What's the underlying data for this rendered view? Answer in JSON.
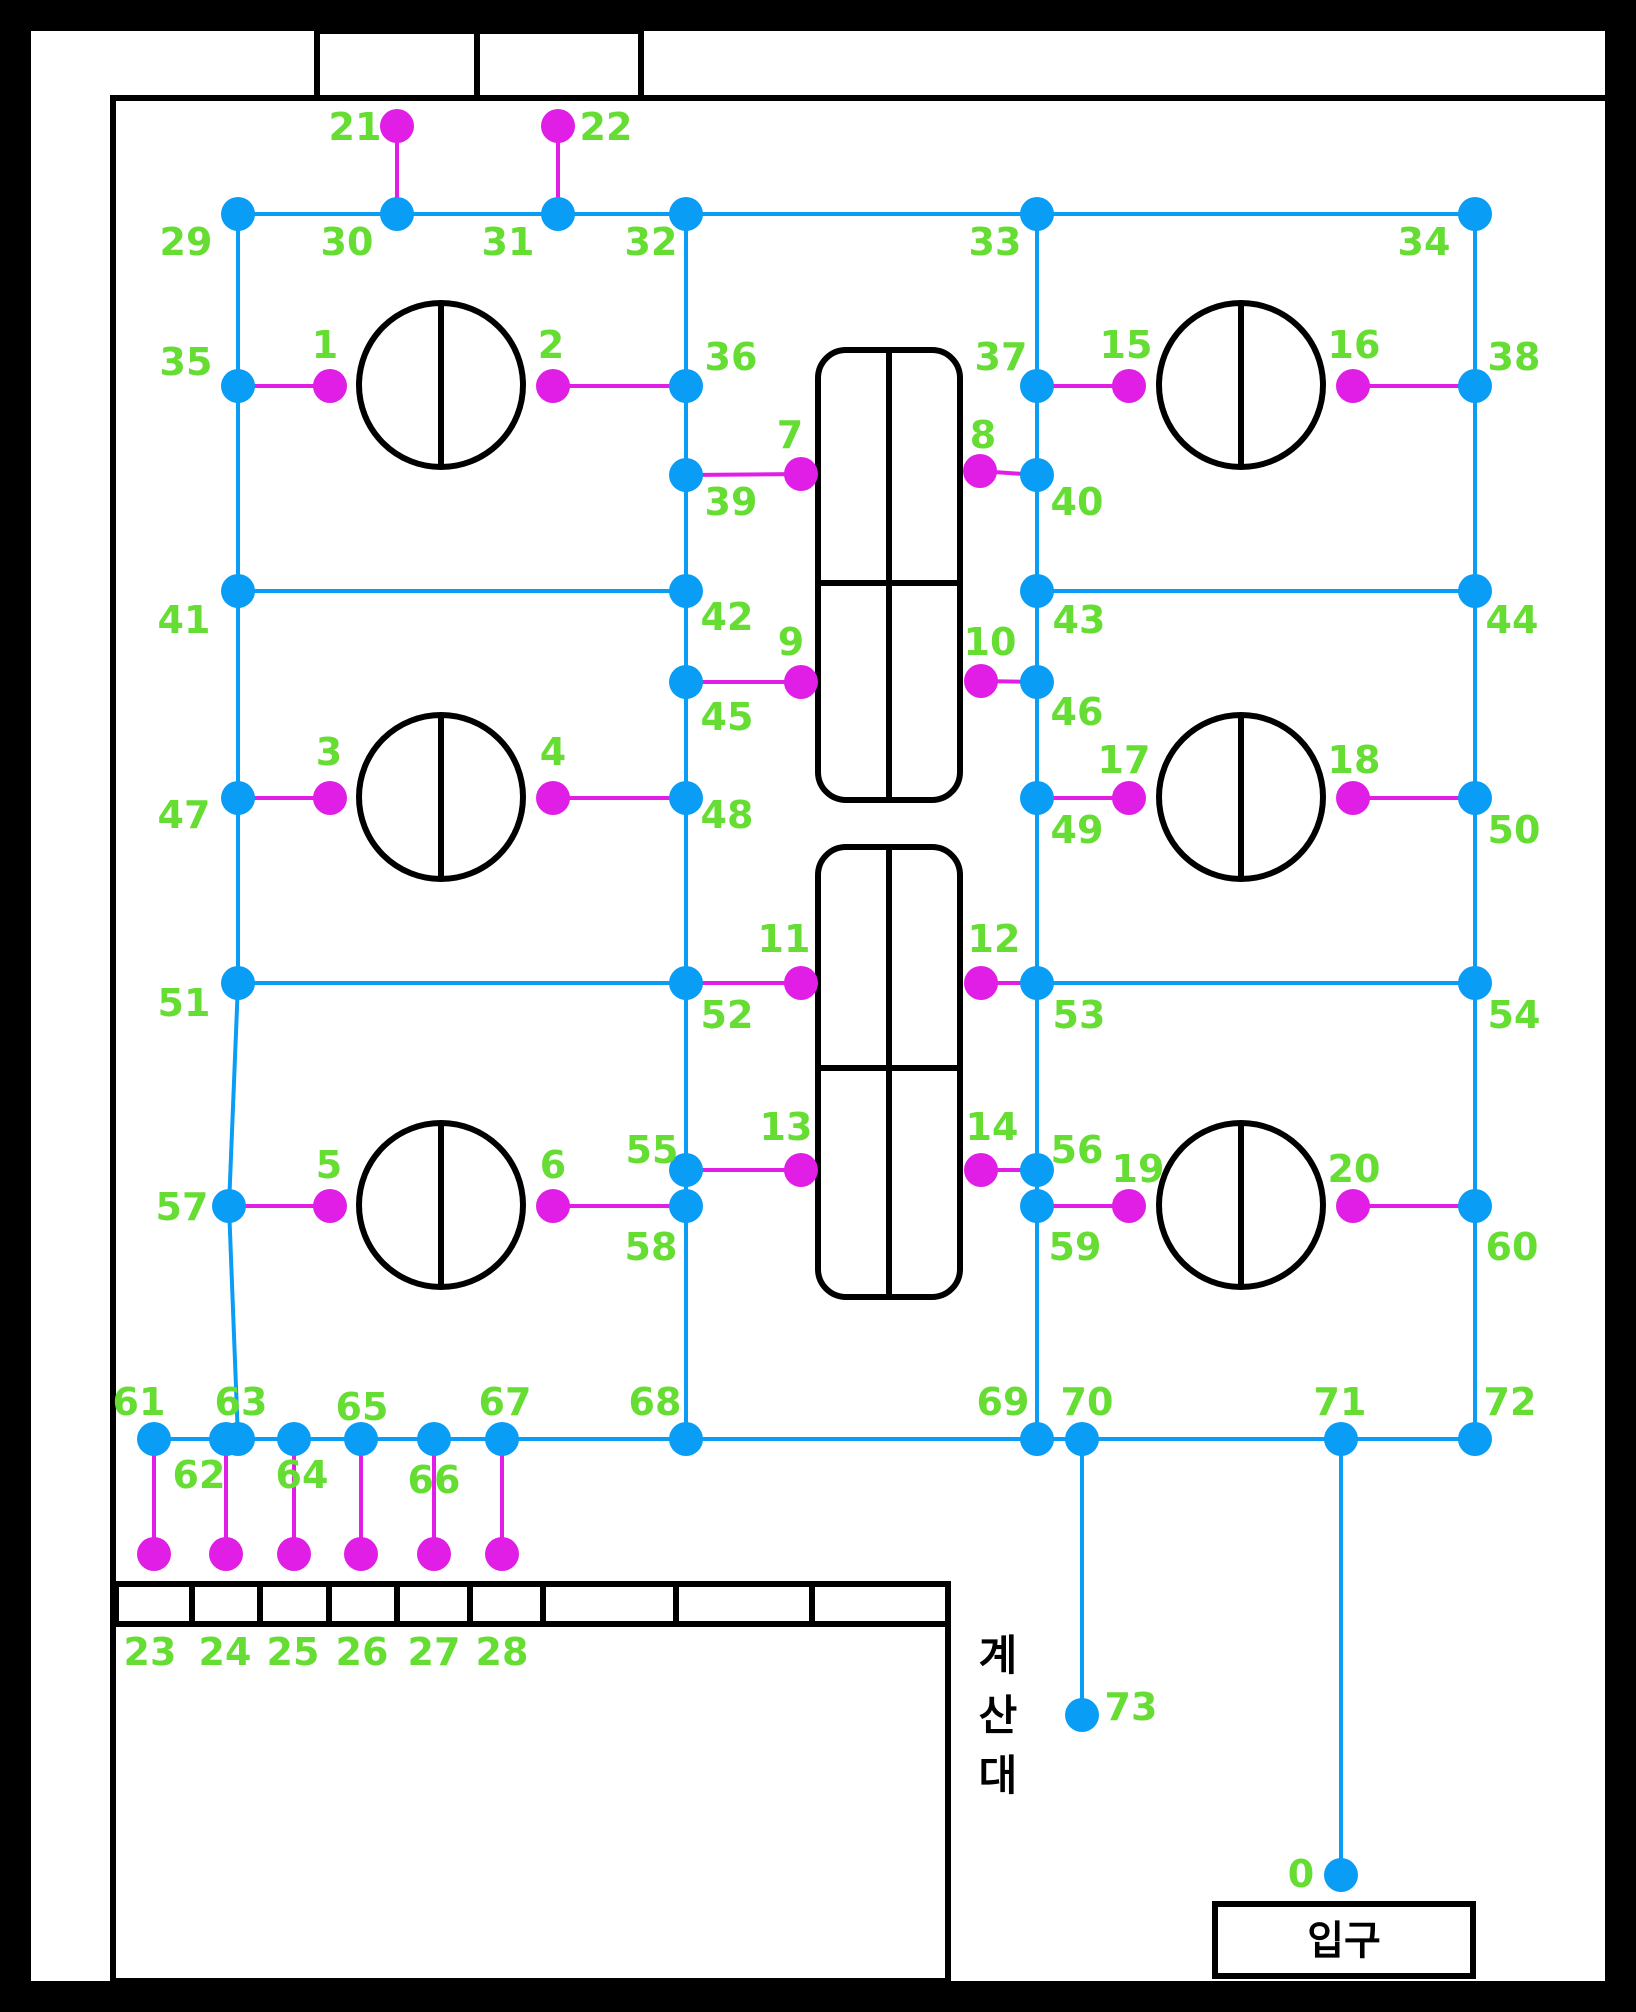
{
  "labels": {
    "counter": [
      "계",
      "산",
      "대"
    ],
    "entrance": "입구"
  },
  "colors": {
    "path": "#0a9df5",
    "seat": "#e01ee6",
    "label": "#66dd33",
    "wall": "#000000",
    "floor": "#ffffff"
  },
  "nodes": [
    {
      "id": "0",
      "type": "path"
    },
    {
      "id": "1",
      "type": "seat"
    },
    {
      "id": "2",
      "type": "seat"
    },
    {
      "id": "3",
      "type": "seat"
    },
    {
      "id": "4",
      "type": "seat"
    },
    {
      "id": "5",
      "type": "seat"
    },
    {
      "id": "6",
      "type": "seat"
    },
    {
      "id": "7",
      "type": "seat"
    },
    {
      "id": "8",
      "type": "seat"
    },
    {
      "id": "9",
      "type": "seat"
    },
    {
      "id": "10",
      "type": "seat"
    },
    {
      "id": "11",
      "type": "seat"
    },
    {
      "id": "12",
      "type": "seat"
    },
    {
      "id": "13",
      "type": "seat"
    },
    {
      "id": "14",
      "type": "seat"
    },
    {
      "id": "15",
      "type": "seat"
    },
    {
      "id": "16",
      "type": "seat"
    },
    {
      "id": "17",
      "type": "seat"
    },
    {
      "id": "18",
      "type": "seat"
    },
    {
      "id": "19",
      "type": "seat"
    },
    {
      "id": "20",
      "type": "seat"
    },
    {
      "id": "21",
      "type": "seat"
    },
    {
      "id": "22",
      "type": "seat"
    },
    {
      "id": "23",
      "type": "seat"
    },
    {
      "id": "24",
      "type": "seat"
    },
    {
      "id": "25",
      "type": "seat"
    },
    {
      "id": "26",
      "type": "seat"
    },
    {
      "id": "27",
      "type": "seat"
    },
    {
      "id": "28",
      "type": "seat"
    },
    {
      "id": "29",
      "type": "path"
    },
    {
      "id": "30",
      "type": "path"
    },
    {
      "id": "31",
      "type": "path"
    },
    {
      "id": "32",
      "type": "path"
    },
    {
      "id": "33",
      "type": "path"
    },
    {
      "id": "34",
      "type": "path"
    },
    {
      "id": "35",
      "type": "path"
    },
    {
      "id": "36",
      "type": "path"
    },
    {
      "id": "37",
      "type": "path"
    },
    {
      "id": "38",
      "type": "path"
    },
    {
      "id": "39",
      "type": "path"
    },
    {
      "id": "40",
      "type": "path"
    },
    {
      "id": "41",
      "type": "path"
    },
    {
      "id": "42",
      "type": "path"
    },
    {
      "id": "43",
      "type": "path"
    },
    {
      "id": "44",
      "type": "path"
    },
    {
      "id": "45",
      "type": "path"
    },
    {
      "id": "46",
      "type": "path"
    },
    {
      "id": "47",
      "type": "path"
    },
    {
      "id": "48",
      "type": "path"
    },
    {
      "id": "49",
      "type": "path"
    },
    {
      "id": "50",
      "type": "path"
    },
    {
      "id": "51",
      "type": "path"
    },
    {
      "id": "52",
      "type": "path"
    },
    {
      "id": "53",
      "type": "path"
    },
    {
      "id": "54",
      "type": "path"
    },
    {
      "id": "55",
      "type": "path"
    },
    {
      "id": "56",
      "type": "path"
    },
    {
      "id": "57",
      "type": "path"
    },
    {
      "id": "58",
      "type": "path"
    },
    {
      "id": "59",
      "type": "path"
    },
    {
      "id": "60",
      "type": "path"
    },
    {
      "id": "61",
      "type": "path"
    },
    {
      "id": "62",
      "type": "path"
    },
    {
      "id": "63",
      "type": "path"
    },
    {
      "id": "64",
      "type": "path"
    },
    {
      "id": "65",
      "type": "path"
    },
    {
      "id": "66",
      "type": "path"
    },
    {
      "id": "67",
      "type": "path"
    },
    {
      "id": "68",
      "type": "path"
    },
    {
      "id": "69",
      "type": "path"
    },
    {
      "id": "70",
      "type": "path"
    },
    {
      "id": "71",
      "type": "path"
    },
    {
      "id": "72",
      "type": "path"
    },
    {
      "id": "73",
      "type": "path"
    }
  ],
  "edges": [
    [
      "29",
      "30"
    ],
    [
      "30",
      "31"
    ],
    [
      "31",
      "32"
    ],
    [
      "32",
      "33"
    ],
    [
      "33",
      "34"
    ],
    [
      "29",
      "35"
    ],
    [
      "35",
      "41"
    ],
    [
      "41",
      "47"
    ],
    [
      "47",
      "51"
    ],
    [
      "51",
      "57"
    ],
    [
      "57",
      "63"
    ],
    [
      "32",
      "36"
    ],
    [
      "36",
      "39"
    ],
    [
      "39",
      "42"
    ],
    [
      "42",
      "45"
    ],
    [
      "45",
      "48"
    ],
    [
      "48",
      "52"
    ],
    [
      "52",
      "55"
    ],
    [
      "55",
      "58"
    ],
    [
      "58",
      "68"
    ],
    [
      "33",
      "37"
    ],
    [
      "37",
      "40"
    ],
    [
      "40",
      "43"
    ],
    [
      "43",
      "46"
    ],
    [
      "46",
      "49"
    ],
    [
      "49",
      "53"
    ],
    [
      "53",
      "56"
    ],
    [
      "56",
      "59"
    ],
    [
      "59",
      "69"
    ],
    [
      "34",
      "38"
    ],
    [
      "38",
      "44"
    ],
    [
      "44",
      "50"
    ],
    [
      "50",
      "54"
    ],
    [
      "54",
      "60"
    ],
    [
      "60",
      "72"
    ],
    [
      "41",
      "42"
    ],
    [
      "43",
      "44"
    ],
    [
      "51",
      "52"
    ],
    [
      "53",
      "54"
    ],
    [
      "61",
      "62"
    ],
    [
      "62",
      "63"
    ],
    [
      "63",
      "64"
    ],
    [
      "64",
      "65"
    ],
    [
      "65",
      "66"
    ],
    [
      "66",
      "67"
    ],
    [
      "67",
      "68"
    ],
    [
      "68",
      "69"
    ],
    [
      "69",
      "70"
    ],
    [
      "70",
      "71"
    ],
    [
      "71",
      "72"
    ],
    [
      "70",
      "73"
    ],
    [
      "71",
      "0"
    ],
    [
      "35",
      "1"
    ],
    [
      "2",
      "36"
    ],
    [
      "47",
      "3"
    ],
    [
      "4",
      "48"
    ],
    [
      "57",
      "5"
    ],
    [
      "6",
      "58"
    ],
    [
      "39",
      "7"
    ],
    [
      "8",
      "40"
    ],
    [
      "45",
      "9"
    ],
    [
      "10",
      "46"
    ],
    [
      "52",
      "11"
    ],
    [
      "12",
      "53"
    ],
    [
      "55",
      "13"
    ],
    [
      "14",
      "56"
    ],
    [
      "37",
      "15"
    ],
    [
      "16",
      "38"
    ],
    [
      "49",
      "17"
    ],
    [
      "18",
      "50"
    ],
    [
      "59",
      "19"
    ],
    [
      "20",
      "60"
    ],
    [
      "30",
      "21"
    ],
    [
      "31",
      "22"
    ],
    [
      "61",
      "23"
    ],
    [
      "62",
      "24"
    ],
    [
      "64",
      "25"
    ],
    [
      "65",
      "26"
    ],
    [
      "66",
      "27"
    ],
    [
      "67",
      "28"
    ]
  ]
}
